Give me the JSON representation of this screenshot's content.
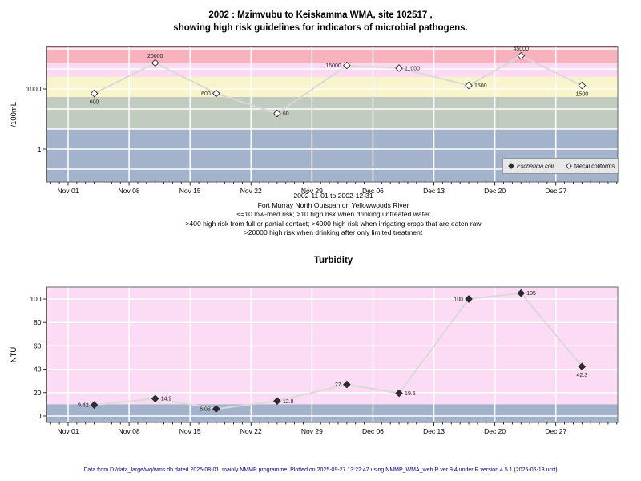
{
  "header": {
    "title_line1": "2002 : Mzimvubu to Keiskamma WMA, site 102517 ,",
    "title_line2": "showing high risk guidelines for indicators of microbial pathogens."
  },
  "footer": {
    "text": "Data from D:/data_large/wq/wms.db dated 2025-08-01, mainly NMMP programme. Plotted on 2025-09-27 13:22:47 using NMMP_WMA_web.R ver 9.4 under R version 4.5.1 (2025-06-13 ucrt)",
    "color": "#00008b"
  },
  "chart_data": [
    {
      "type": "line",
      "name": "microbial-pathogens",
      "y_axis": {
        "label": "/100mL",
        "scale": "log",
        "ticks": [
          {
            "value": 1000,
            "label": "1000"
          },
          {
            "value": 1,
            "label": "1"
          }
        ],
        "grid_decades": [
          100000,
          10000,
          1000,
          100,
          10,
          1,
          0.1
        ]
      },
      "x_axis": {
        "label": "2002-11-01 to 2002-12-31",
        "ticks": [
          {
            "day": 0,
            "label": "Nov 01"
          },
          {
            "day": 7,
            "label": "Nov 08"
          },
          {
            "day": 14,
            "label": "Nov 15"
          },
          {
            "day": 21,
            "label": "Nov 22"
          },
          {
            "day": 28,
            "label": "Nov 29"
          },
          {
            "day": 35,
            "label": "Dec 06"
          },
          {
            "day": 42,
            "label": "Dec 13"
          },
          {
            "day": 49,
            "label": "Dec 20"
          },
          {
            "day": 56,
            "label": "Dec 27"
          }
        ]
      },
      "subtitle_lines": [
        "Fort Murray North Outspan on Yellowwoods River",
        "<=10 low-med risk; >10 high risk when drinking untreated water",
        ">400 high risk from full or partial contact; >4000 high risk when irrigating crops that are eaten raw",
        ">20000 high risk when drinking after only limited treatment"
      ],
      "bands": [
        {
          "from": 20000,
          "to": null,
          "color": "#f8b2bd"
        },
        {
          "from": 4000,
          "to": 20000,
          "color": "#fcd9f3"
        },
        {
          "from": 400,
          "to": 4000,
          "color": "#f8f5ca"
        },
        {
          "from": 10,
          "to": 400,
          "color": "#c2cbbf"
        },
        {
          "from": null,
          "to": 10,
          "color": "#a2b3cb"
        }
      ],
      "series": [
        {
          "name": "Eschericia coli",
          "marker": "filled-diamond",
          "points": []
        },
        {
          "name": "faecal coliforms",
          "marker": "open-diamond",
          "points": [
            {
              "day": 3,
              "date": "Nov 04",
              "value": 600,
              "label": "600",
              "label_pos": "below"
            },
            {
              "day": 10,
              "date": "Nov 11",
              "value": 20000,
              "label": "20000",
              "label_pos": "above"
            },
            {
              "day": 17,
              "date": "Nov 18",
              "value": 600,
              "label": "600",
              "label_pos": "left"
            },
            {
              "day": 24,
              "date": "Nov 25",
              "value": 60,
              "label": "60",
              "label_pos": "right"
            },
            {
              "day": 32,
              "date": "Dec 03",
              "value": 15000,
              "label": "15000",
              "label_pos": "left"
            },
            {
              "day": 38,
              "date": "Dec 09",
              "value": 11000,
              "label": "11000",
              "label_pos": "right"
            },
            {
              "day": 46,
              "date": "Dec 17",
              "value": 1500,
              "label": "1500",
              "label_pos": "right"
            },
            {
              "day": 52,
              "date": "Dec 23",
              "value": 45000,
              "label": "45000",
              "label_pos": "above"
            },
            {
              "day": 59,
              "date": "Dec 30",
              "value": 1500,
              "label": "1500",
              "label_pos": "below"
            }
          ]
        }
      ],
      "legend": {
        "position": "bottom-right",
        "items": [
          {
            "label": "Eschericia coli",
            "marker": "filled-diamond",
            "italic": true
          },
          {
            "label": "faecal coliforms",
            "marker": "open-diamond",
            "italic": false
          }
        ]
      }
    },
    {
      "type": "line",
      "name": "turbidity",
      "title": "Turbidity",
      "y_axis": {
        "label": "NTU",
        "scale": "linear",
        "ticks": [
          0,
          20,
          40,
          60,
          80,
          100
        ],
        "ylim": [
          -5,
          110
        ]
      },
      "x_axis": {
        "ticks": [
          {
            "day": 0,
            "label": "Nov 01"
          },
          {
            "day": 7,
            "label": "Nov 08"
          },
          {
            "day": 14,
            "label": "Nov 15"
          },
          {
            "day": 21,
            "label": "Nov 22"
          },
          {
            "day": 28,
            "label": "Nov 29"
          },
          {
            "day": 35,
            "label": "Dec 06"
          },
          {
            "day": 42,
            "label": "Dec 13"
          },
          {
            "day": 49,
            "label": "Dec 20"
          },
          {
            "day": 56,
            "label": "Dec 27"
          }
        ]
      },
      "bands": [
        {
          "from": 10,
          "to": null,
          "color": "#fcdcf5"
        },
        {
          "from": null,
          "to": 10,
          "color": "#a2b3cb"
        }
      ],
      "series": [
        {
          "name": "Turbidity",
          "marker": "filled-diamond",
          "points": [
            {
              "day": 3,
              "date": "Nov 04",
              "value": 9.42,
              "label": "9.42",
              "label_pos": "left"
            },
            {
              "day": 10,
              "date": "Nov 11",
              "value": 14.9,
              "label": "14.9",
              "label_pos": "right"
            },
            {
              "day": 17,
              "date": "Nov 18",
              "value": 6.08,
              "label": "6.08",
              "label_pos": "left"
            },
            {
              "day": 24,
              "date": "Nov 25",
              "value": 12.8,
              "label": "12.8",
              "label_pos": "right"
            },
            {
              "day": 32,
              "date": "Dec 03",
              "value": 27,
              "label": "27",
              "label_pos": "left"
            },
            {
              "day": 38,
              "date": "Dec 09",
              "value": 19.5,
              "label": "19.5",
              "label_pos": "right"
            },
            {
              "day": 46,
              "date": "Dec 17",
              "value": 100,
              "label": "100",
              "label_pos": "left"
            },
            {
              "day": 52,
              "date": "Dec 23",
              "value": 105,
              "label": "105",
              "label_pos": "right"
            },
            {
              "day": 59,
              "date": "Dec 30",
              "value": 42.3,
              "label": "42.3",
              "label_pos": "below"
            }
          ]
        }
      ]
    }
  ]
}
